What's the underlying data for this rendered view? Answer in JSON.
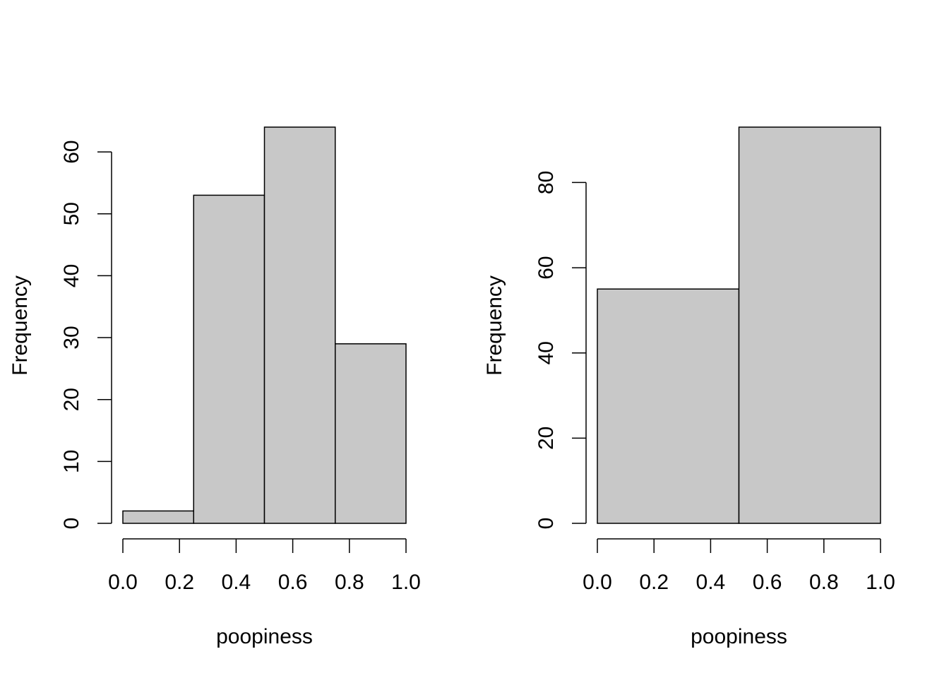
{
  "colors": {
    "bar_fill": "#c8c8c8",
    "stroke": "#000000",
    "background": "#ffffff"
  },
  "chart_data": [
    {
      "type": "bar",
      "title": "",
      "xlabel": "poopiness",
      "ylabel": "Frequency",
      "bins": [
        [
          0.0,
          0.25
        ],
        [
          0.25,
          0.5
        ],
        [
          0.5,
          0.75
        ],
        [
          0.75,
          1.0
        ]
      ],
      "values": [
        2,
        53,
        64,
        29
      ],
      "xlim": [
        0.0,
        1.0
      ],
      "ylim": [
        0,
        64
      ],
      "xticks": [
        0.0,
        0.2,
        0.4,
        0.6,
        0.8,
        1.0
      ],
      "xtick_labels": [
        "0.0",
        "0.2",
        "0.4",
        "0.6",
        "0.8",
        "1.0"
      ],
      "yticks": [
        0,
        10,
        20,
        30,
        40,
        50,
        60
      ],
      "ytick_labels": [
        "0",
        "10",
        "20",
        "30",
        "40",
        "50",
        "60"
      ]
    },
    {
      "type": "bar",
      "title": "",
      "xlabel": "poopiness",
      "ylabel": "Frequency",
      "bins": [
        [
          0.0,
          0.5
        ],
        [
          0.5,
          1.0
        ]
      ],
      "values": [
        55,
        93
      ],
      "xlim": [
        0.0,
        1.0
      ],
      "ylim": [
        0,
        93
      ],
      "xticks": [
        0.0,
        0.2,
        0.4,
        0.6,
        0.8,
        1.0
      ],
      "xtick_labels": [
        "0.0",
        "0.2",
        "0.4",
        "0.6",
        "0.8",
        "1.0"
      ],
      "yticks": [
        0,
        20,
        40,
        60,
        80
      ],
      "ytick_labels": [
        "0",
        "20",
        "40",
        "60",
        "80"
      ]
    }
  ]
}
